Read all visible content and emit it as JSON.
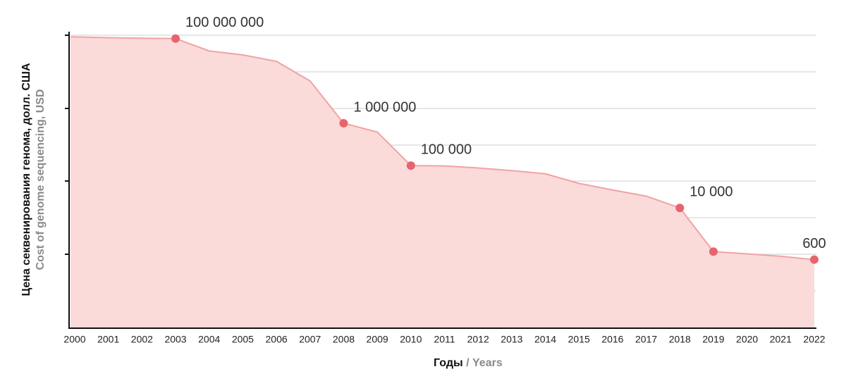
{
  "chart_data": {
    "type": "area",
    "log_y": true,
    "ylabel": "Цена секвенирования генома, долл. США",
    "ylabel_en": "Cost of genome sequencing, USD",
    "xlabel": "Годы",
    "xlabel_en": "/ Years",
    "categories": [
      "2000",
      "2001",
      "2002",
      "2003",
      "2004",
      "2005",
      "2006",
      "2007",
      "2008",
      "2009",
      "2010",
      "2011",
      "2012",
      "2013",
      "2014",
      "2015",
      "2016",
      "2017",
      "2018",
      "2019",
      "2020",
      "2021",
      "2022"
    ],
    "ylim": [
      15,
      120000000
    ],
    "series": [
      {
        "color": "#e8646c",
        "line_color": "#f0a3a3",
        "fill": "#fbdada",
        "values": [
          110000000,
          105000000,
          102000000,
          100000000,
          51000000,
          41000000,
          29000000,
          10000000,
          1000000,
          620000,
          100000,
          98000,
          88000,
          76000,
          64000,
          38000,
          26500,
          19000,
          10000,
          930,
          820,
          720,
          600
        ],
        "value_labels": [
          null,
          null,
          null,
          "100 000 000",
          null,
          null,
          null,
          null,
          "1 000 000",
          null,
          "100 000",
          null,
          null,
          null,
          null,
          null,
          null,
          null,
          "10 000",
          null,
          null,
          null,
          "600"
        ],
        "marker_indices": [
          3,
          8,
          10,
          18,
          19,
          22
        ]
      }
    ]
  }
}
